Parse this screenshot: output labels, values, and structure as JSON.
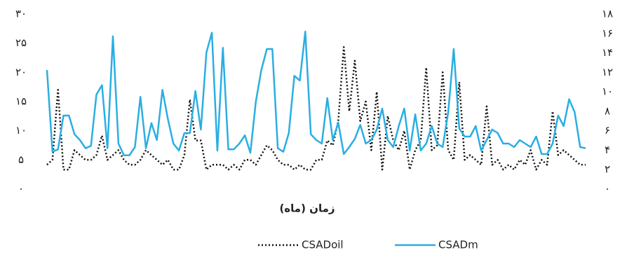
{
  "chart_data": {
    "type": "line",
    "x_label": "زمان (ماه)",
    "categories": [
      null,
      null,
      null,
      null,
      null,
      null,
      null,
      null,
      null,
      null,
      null,
      null,
      null,
      null,
      null,
      null,
      null,
      null,
      null,
      null,
      null,
      null,
      null,
      null,
      null,
      null,
      null,
      null,
      null,
      null,
      null,
      null,
      null,
      null,
      null,
      null,
      null,
      null,
      null,
      null,
      null,
      null,
      null,
      null,
      null,
      null,
      null,
      null,
      null,
      null,
      null,
      null,
      null,
      null,
      null,
      null,
      null,
      null,
      null,
      null,
      null,
      null,
      null,
      null,
      null,
      null,
      null,
      null,
      null,
      null,
      null,
      null,
      null,
      null,
      null,
      null,
      null,
      null,
      null,
      null,
      null,
      null,
      null,
      null,
      null,
      null,
      null,
      null,
      null,
      null,
      null,
      null,
      null,
      null,
      null,
      null,
      null,
      null,
      null
    ],
    "ylim": [
      0,
      30
    ],
    "yticks": [
      {
        "value": 0,
        "label": "۰"
      },
      {
        "value": 5,
        "label": "۵"
      },
      {
        "value": 10,
        "label": "۱۰"
      },
      {
        "value": 15,
        "label": "۱۵"
      },
      {
        "value": 20,
        "label": "۲۰"
      },
      {
        "value": 25,
        "label": "۲۵"
      },
      {
        "value": 30,
        "label": "۳۰"
      }
    ],
    "y2lim": [
      0,
      18
    ],
    "y2ticks": [
      {
        "value": 0,
        "label": "۰"
      },
      {
        "value": 2,
        "label": "۲"
      },
      {
        "value": 4,
        "label": "۴"
      },
      {
        "value": 6,
        "label": "۶"
      },
      {
        "value": 8,
        "label": "۸"
      },
      {
        "value": 10,
        "label": "۱۰"
      },
      {
        "value": 12,
        "label": "۱۲"
      },
      {
        "value": 14,
        "label": "۱۴"
      },
      {
        "value": 16,
        "label": "۱۶"
      },
      {
        "value": 18,
        "label": "۱۸"
      }
    ],
    "grid": false,
    "series": [
      {
        "name": "CSADoil",
        "color": "#111111",
        "style": "dotted",
        "axis": "y2",
        "values": [
          2.5,
          3,
          10.2,
          2,
          2,
          4,
          3.5,
          3,
          3,
          3.5,
          5.5,
          3,
          3.5,
          4,
          3,
          2.5,
          2.5,
          3,
          4,
          3.5,
          3,
          2.5,
          3,
          2,
          2,
          3.5,
          9.2,
          5,
          5,
          2,
          2.5,
          2.5,
          2.5,
          2,
          2.5,
          2,
          3,
          3,
          2.5,
          3.5,
          4.5,
          4,
          3,
          2.5,
          2.5,
          2,
          2.5,
          2,
          2,
          3,
          3,
          5,
          4.5,
          7,
          14.6,
          8,
          13.2,
          7,
          9,
          4,
          10,
          2,
          7.5,
          5,
          4,
          6,
          2,
          4,
          5,
          12.5,
          4,
          4.5,
          12,
          4,
          3,
          11,
          3,
          3.5,
          3,
          2.5,
          8.5,
          2.5,
          3,
          2,
          2.5,
          2,
          3,
          2.5,
          4,
          2,
          3,
          2.5,
          8,
          3.5,
          4,
          3.5,
          3,
          2.5,
          2.5
        ]
      },
      {
        "name": "CSADm",
        "color": "#2aaee3",
        "style": "solid",
        "axis": "y",
        "values": [
          20.4,
          6.4,
          6.8,
          12.6,
          12.6,
          9.4,
          8.4,
          7,
          7.4,
          16.2,
          17.8,
          7,
          26.2,
          7.8,
          5.8,
          5.8,
          7.2,
          15.8,
          7,
          11.3,
          8.4,
          17,
          12,
          7.8,
          6.6,
          9.6,
          9.6,
          16.8,
          10.2,
          23.4,
          26.8,
          6.6,
          24.2,
          6.8,
          6.8,
          7.8,
          9.2,
          6.2,
          15,
          20.4,
          24,
          24,
          7,
          6.4,
          9.6,
          19.4,
          18.6,
          27,
          9.4,
          8.4,
          7.8,
          15.6,
          8.4,
          11.4,
          6,
          7.2,
          8.6,
          11,
          7.8,
          8.4,
          10.2,
          13.8,
          8.4,
          7.2,
          10.8,
          13.8,
          6.6,
          12.8,
          6.6,
          7.8,
          10.8,
          7.8,
          7.2,
          13.2,
          24,
          10.4,
          9,
          9,
          10.8,
          6.6,
          8.4,
          10.2,
          9.6,
          7.8,
          7.8,
          7.2,
          8.4,
          7.8,
          7.2,
          9,
          6,
          6,
          7.8,
          12.6,
          10.8,
          15.4,
          13.2,
          7.2,
          7
        ]
      }
    ],
    "legend": "bottom"
  }
}
